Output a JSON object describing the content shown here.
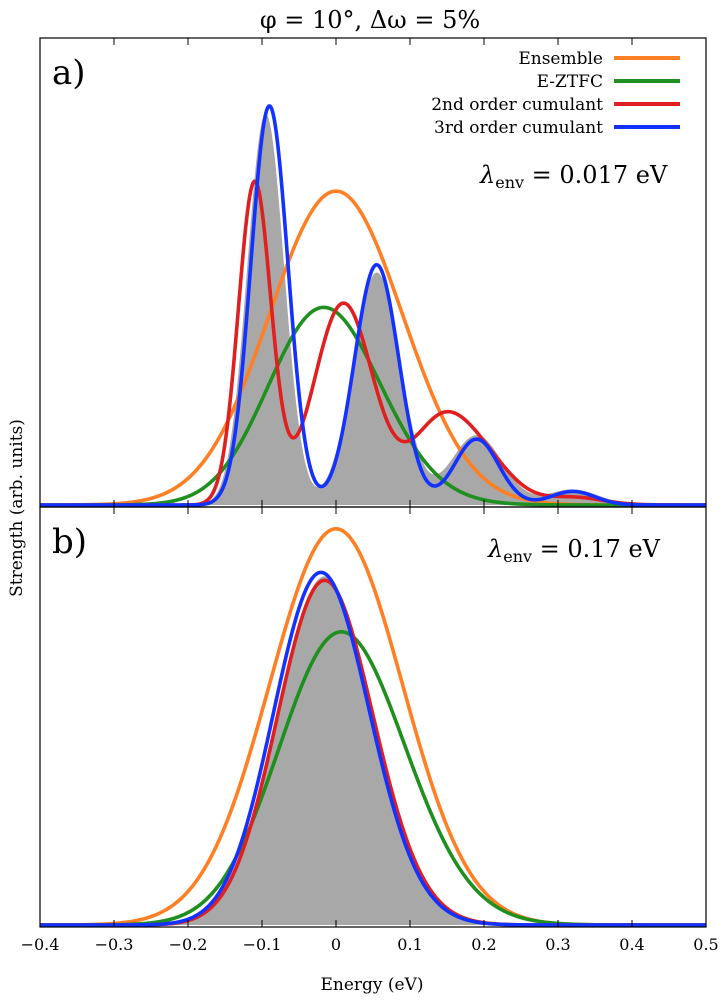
{
  "title": "φ = 10°,  Δω = 5%",
  "colors": {
    "ensemble": "#ff7f24",
    "eztfc": "#1f8f1f",
    "cum2": "#e02020",
    "cum3": "#1432ff",
    "fill": "#a8a8a8"
  },
  "chart_data": {
    "type": "line",
    "xlabel": "Energy (eV)",
    "ylabel": "Strength (arb. units)",
    "xlim": [
      -0.4,
      0.5
    ],
    "xticks": [
      -0.4,
      -0.3,
      -0.2,
      -0.1,
      0,
      0.1,
      0.2,
      0.3,
      0.4,
      0.5
    ],
    "xtick_labels": [
      "−0.4",
      "−0.3",
      "−0.2",
      "−0.1",
      "0",
      "0.1",
      "0.2",
      "0.3",
      "0.4",
      "0.5"
    ],
    "legend": {
      "placement": "top-right",
      "entries": [
        "Ensemble",
        "E-ZTFC",
        "2nd order cumulant",
        "3rd order cumulant"
      ]
    },
    "panels": [
      {
        "label": "a)",
        "annotation": "λenv = 0.017 eV",
        "annotation_main": "λ",
        "annotation_sub": "env",
        "annotation_value": " = 0.017 eV",
        "ylim": [
          0,
          1.2
        ],
        "series": [
          {
            "name": "Ensemble",
            "color_key": "ensemble",
            "gauss": [
              [
                0.81,
                0.0,
                0.09
              ]
            ]
          },
          {
            "name": "E-ZTFC",
            "color_key": "eztfc",
            "skew": [
              0.51,
              -0.06,
              0.09,
              0.22
            ]
          },
          {
            "name": "2nd order cumulant",
            "color_key": "cum2",
            "gauss": [
              [
                0.83,
                -0.11,
                0.022
              ],
              [
                0.52,
                0.01,
                0.04
              ],
              [
                0.2,
                0.14,
                0.04
              ],
              [
                0.1,
                0.2,
                0.04
              ],
              [
                0.02,
                0.32,
                0.04
              ]
            ]
          },
          {
            "name": "3rd order cumulant",
            "color_key": "cum3",
            "gauss": [
              [
                1.03,
                -0.09,
                0.025
              ],
              [
                0.62,
                0.055,
                0.03
              ],
              [
                0.17,
                0.19,
                0.03
              ],
              [
                0.035,
                0.32,
                0.03
              ]
            ]
          },
          {
            "name": "",
            "color_key": "fill",
            "filled": true,
            "gauss": [
              [
                1.01,
                -0.095,
                0.025
              ],
              [
                0.6,
                0.055,
                0.032
              ],
              [
                0.18,
                0.19,
                0.035
              ],
              [
                0.04,
                0.32,
                0.035
              ]
            ]
          }
        ]
      },
      {
        "label": "b)",
        "annotation": "λenv = 0.17 eV",
        "annotation_main": "λ",
        "annotation_sub": "env",
        "annotation_value": " = 0.17 eV",
        "ylim": [
          0,
          1.05
        ],
        "series": [
          {
            "name": "Ensemble",
            "color_key": "ensemble",
            "gauss": [
              [
                1.0,
                0.0,
                0.09
              ]
            ]
          },
          {
            "name": "E-ZTFC",
            "color_key": "eztfc",
            "skew": [
              0.74,
              -0.04,
              0.1,
              0.21
            ]
          },
          {
            "name": "2nd order cumulant",
            "color_key": "cum2",
            "skew": [
              0.87,
              -0.05,
              0.075,
              0.2
            ]
          },
          {
            "name": "3rd order cumulant",
            "color_key": "cum3",
            "skew": [
              0.89,
              -0.055,
              0.075,
              0.2
            ]
          },
          {
            "name": "",
            "color_key": "fill",
            "filled": true,
            "skew": [
              0.88,
              -0.05,
              0.075,
              0.2
            ]
          }
        ]
      }
    ]
  }
}
